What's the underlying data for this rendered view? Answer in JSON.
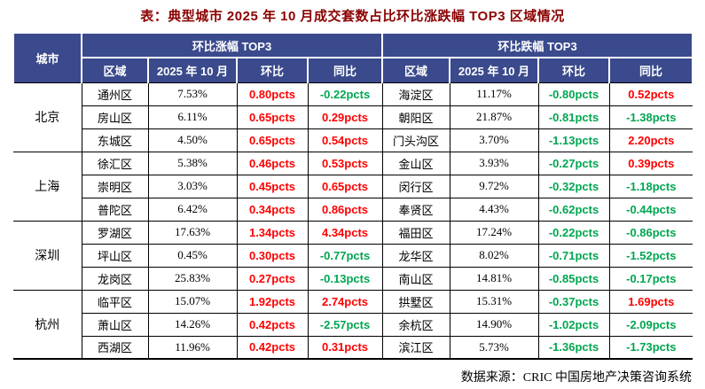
{
  "colors": {
    "header_bg": "#3A4A8C",
    "positive": "#FF0000",
    "negative": "#00A651",
    "title_color": "#8B0000"
  },
  "chart_data": {
    "type": "table",
    "title": "表：典型城市 2025 年 10 月成交套数占比环比涨跌幅 TOP3 区域情况",
    "source": "数据来源：CRIC 中国房地产决策咨询系统",
    "city_header": "城市",
    "group_headers": [
      "环比涨幅 TOP3",
      "环比跌幅 TOP3"
    ],
    "sub_headers": [
      "区域",
      "2025 年 10 月",
      "环比",
      "同比"
    ],
    "color_rule": "positive values red, negative values green",
    "cities": [
      {
        "city": "北京",
        "rows": [
          {
            "up": [
              "通州区",
              "7.53%",
              "0.80pcts",
              "-0.22pcts"
            ],
            "down": [
              "海淀区",
              "11.17%",
              "-0.80pcts",
              "0.52pcts"
            ]
          },
          {
            "up": [
              "房山区",
              "6.11%",
              "0.65pcts",
              "0.29pcts"
            ],
            "down": [
              "朝阳区",
              "21.87%",
              "-0.81pcts",
              "-1.38pcts"
            ]
          },
          {
            "up": [
              "东城区",
              "4.50%",
              "0.65pcts",
              "0.54pcts"
            ],
            "down": [
              "门头沟区",
              "3.70%",
              "-1.13pcts",
              "2.20pcts"
            ]
          }
        ]
      },
      {
        "city": "上海",
        "rows": [
          {
            "up": [
              "徐汇区",
              "5.38%",
              "0.46pcts",
              "0.53pcts"
            ],
            "down": [
              "金山区",
              "3.93%",
              "-0.27pcts",
              "0.39pcts"
            ]
          },
          {
            "up": [
              "崇明区",
              "3.03%",
              "0.45pcts",
              "0.65pcts"
            ],
            "down": [
              "闵行区",
              "9.72%",
              "-0.32pcts",
              "-1.18pcts"
            ]
          },
          {
            "up": [
              "普陀区",
              "6.42%",
              "0.34pcts",
              "0.86pcts"
            ],
            "down": [
              "奉贤区",
              "4.43%",
              "-0.62pcts",
              "-0.44pcts"
            ]
          }
        ]
      },
      {
        "city": "深圳",
        "rows": [
          {
            "up": [
              "罗湖区",
              "17.63%",
              "1.34pcts",
              "4.34pcts"
            ],
            "down": [
              "福田区",
              "17.24%",
              "-0.22pcts",
              "-0.86pcts"
            ]
          },
          {
            "up": [
              "坪山区",
              "0.45%",
              "0.30pcts",
              "-0.77pcts"
            ],
            "down": [
              "龙华区",
              "8.02%",
              "-0.71pcts",
              "-1.52pcts"
            ]
          },
          {
            "up": [
              "龙岗区",
              "25.83%",
              "0.27pcts",
              "-0.13pcts"
            ],
            "down": [
              "南山区",
              "14.81%",
              "-0.85pcts",
              "-0.17pcts"
            ]
          }
        ]
      },
      {
        "city": "杭州",
        "rows": [
          {
            "up": [
              "临平区",
              "15.07%",
              "1.92pcts",
              "2.74pcts"
            ],
            "down": [
              "拱墅区",
              "15.31%",
              "-0.37pcts",
              "1.69pcts"
            ]
          },
          {
            "up": [
              "萧山区",
              "14.26%",
              "0.42pcts",
              "-2.57pcts"
            ],
            "down": [
              "余杭区",
              "14.90%",
              "-1.02pcts",
              "-2.09pcts"
            ]
          },
          {
            "up": [
              "西湖区",
              "11.96%",
              "0.42pcts",
              "0.31pcts"
            ],
            "down": [
              "滨江区",
              "5.73%",
              "-1.36pcts",
              "-1.73pcts"
            ]
          }
        ]
      }
    ]
  }
}
